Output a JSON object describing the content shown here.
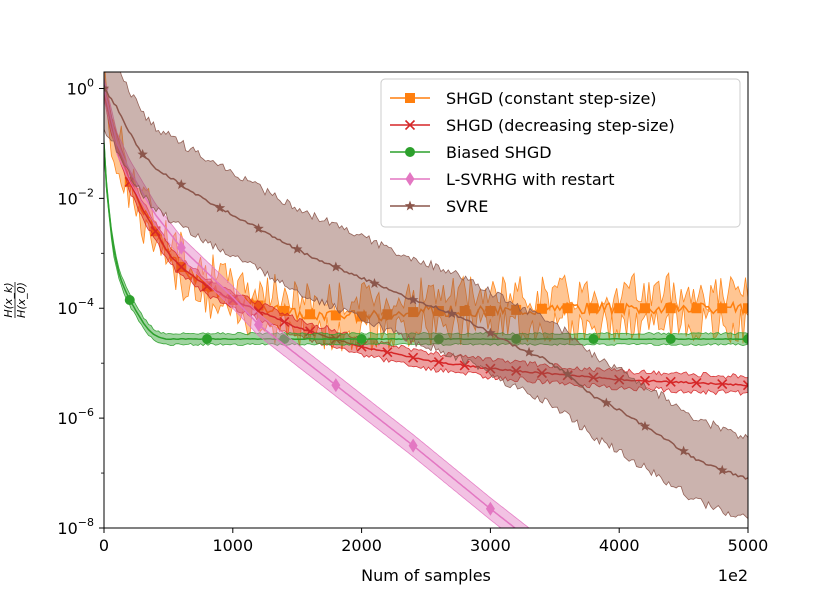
{
  "chart_data": {
    "type": "line",
    "title": "",
    "xlabel": "Num of samples",
    "ylabel": "H(x_k) / H(x_0)",
    "ylabel_num": "H(x_k)",
    "ylabel_den": "H(x_0)",
    "x_offset_text": "1e2",
    "xlim": [
      0,
      5000
    ],
    "ylim_log10": [
      -8,
      0.3
    ],
    "y_scale": "log",
    "x_ticks": [
      {
        "value": 0,
        "label": "0"
      },
      {
        "value": 1000,
        "label": "1000"
      },
      {
        "value": 2000,
        "label": "2000"
      },
      {
        "value": 3000,
        "label": "3000"
      },
      {
        "value": 4000,
        "label": "4000"
      },
      {
        "value": 5000,
        "label": "5000"
      }
    ],
    "y_ticks": [
      {
        "exp": 0,
        "base": "10",
        "sup": "0"
      },
      {
        "exp": -2,
        "base": "10",
        "sup": "−2"
      },
      {
        "exp": -4,
        "base": "10",
        "sup": "−4"
      },
      {
        "exp": -6,
        "base": "10",
        "sup": "−6"
      },
      {
        "exp": -8,
        "base": "10",
        "sup": "−8"
      }
    ],
    "legend_position": "upper-right",
    "series": [
      {
        "name": "SHGD (constant step-size)",
        "color": "#ff7f0e",
        "marker": "square",
        "x": [
          0,
          50,
          100,
          150,
          200,
          300,
          400,
          500,
          600,
          800,
          1000,
          1200,
          1500,
          2000,
          2500,
          3000,
          3500,
          4000,
          4500,
          5000
        ],
        "log10_y": [
          0,
          -0.6,
          -1.0,
          -1.35,
          -1.7,
          -2.2,
          -2.6,
          -3.0,
          -3.25,
          -3.6,
          -3.85,
          -3.95,
          -4.1,
          -4.15,
          -4.05,
          -4.05,
          -4.0,
          -4.0,
          -4.0,
          -4.0
        ],
        "band": 0.3,
        "noise": 0.35,
        "marker_x": [
          200,
          400,
          600,
          800,
          1000,
          1200,
          1400,
          1600,
          1800,
          2000,
          2200,
          2400,
          2600,
          2800,
          3000,
          3200,
          3400,
          3600,
          3800,
          4000,
          4200,
          4400,
          4600,
          4800,
          5000
        ]
      },
      {
        "name": "SHGD (decreasing step-size)",
        "color": "#d62728",
        "marker": "x",
        "x": [
          0,
          50,
          100,
          150,
          200,
          300,
          400,
          500,
          600,
          800,
          1000,
          1200,
          1500,
          2000,
          2500,
          3000,
          3500,
          4000,
          4500,
          5000
        ],
        "log10_y": [
          0,
          -0.6,
          -1.0,
          -1.35,
          -1.7,
          -2.2,
          -2.6,
          -3.0,
          -3.25,
          -3.6,
          -3.85,
          -4.05,
          -4.35,
          -4.7,
          -4.95,
          -5.1,
          -5.2,
          -5.3,
          -5.35,
          -5.4
        ],
        "band": 0.15,
        "noise": 0.05,
        "marker_x": [
          200,
          400,
          600,
          800,
          1000,
          1200,
          1400,
          1600,
          1800,
          2000,
          2200,
          2400,
          2600,
          2800,
          3000,
          3200,
          3400,
          3600,
          3800,
          4000,
          4200,
          4400,
          4600,
          4800,
          5000
        ]
      },
      {
        "name": "Biased SHGD",
        "color": "#2ca02c",
        "marker": "circle",
        "x": [
          0,
          20,
          50,
          80,
          120,
          160,
          200,
          250,
          300,
          350,
          400,
          450,
          500,
          700,
          1000,
          2000,
          3000,
          4000,
          5000
        ],
        "log10_y": [
          -1.0,
          -1.8,
          -2.5,
          -3.0,
          -3.4,
          -3.65,
          -3.85,
          -4.05,
          -4.25,
          -4.4,
          -4.5,
          -4.55,
          -4.56,
          -4.56,
          -4.56,
          -4.56,
          -4.56,
          -4.56,
          -4.56
        ],
        "band": 0.1,
        "noise": 0.02,
        "marker_x": [
          200,
          800,
          1400,
          2000,
          2600,
          3200,
          3800,
          4400,
          5000
        ]
      },
      {
        "name": "L-SVRHG with restart",
        "color": "#e377c2",
        "marker": "diamond",
        "x": [
          0,
          100,
          200,
          400,
          600,
          1000,
          1200,
          1800,
          2400,
          3000,
          3300
        ],
        "log10_y": [
          0,
          -1.0,
          -1.5,
          -2.3,
          -2.9,
          -3.8,
          -4.3,
          -5.4,
          -6.5,
          -7.65,
          -8.2
        ],
        "band": 0.2,
        "noise": 0.0,
        "marker_x": [
          0,
          600,
          1200,
          1800,
          2400,
          3000
        ]
      },
      {
        "name": "SVRE",
        "color": "#8c564b",
        "marker": "star",
        "x": [
          0,
          100,
          200,
          300,
          400,
          600,
          800,
          1000,
          1200,
          1400,
          1600,
          1800,
          2000,
          2200,
          2400,
          2600,
          2800,
          3000,
          3200,
          3400,
          3600,
          3800,
          4000,
          4200,
          4400,
          4600,
          4800,
          5000
        ],
        "log10_y": [
          0,
          -0.35,
          -0.8,
          -1.2,
          -1.45,
          -1.75,
          -2.05,
          -2.3,
          -2.55,
          -2.8,
          -3.05,
          -3.25,
          -3.45,
          -3.65,
          -3.85,
          -4.0,
          -4.2,
          -4.45,
          -4.7,
          -4.9,
          -5.2,
          -5.6,
          -5.85,
          -6.15,
          -6.45,
          -6.75,
          -6.95,
          -7.1
        ],
        "band": 0.75,
        "noise": 0.08,
        "marker_x": [
          0,
          300,
          600,
          900,
          1200,
          1500,
          1800,
          2100,
          2400,
          2700,
          3000,
          3300,
          3600,
          3900,
          4200,
          4500,
          4800
        ]
      }
    ]
  }
}
